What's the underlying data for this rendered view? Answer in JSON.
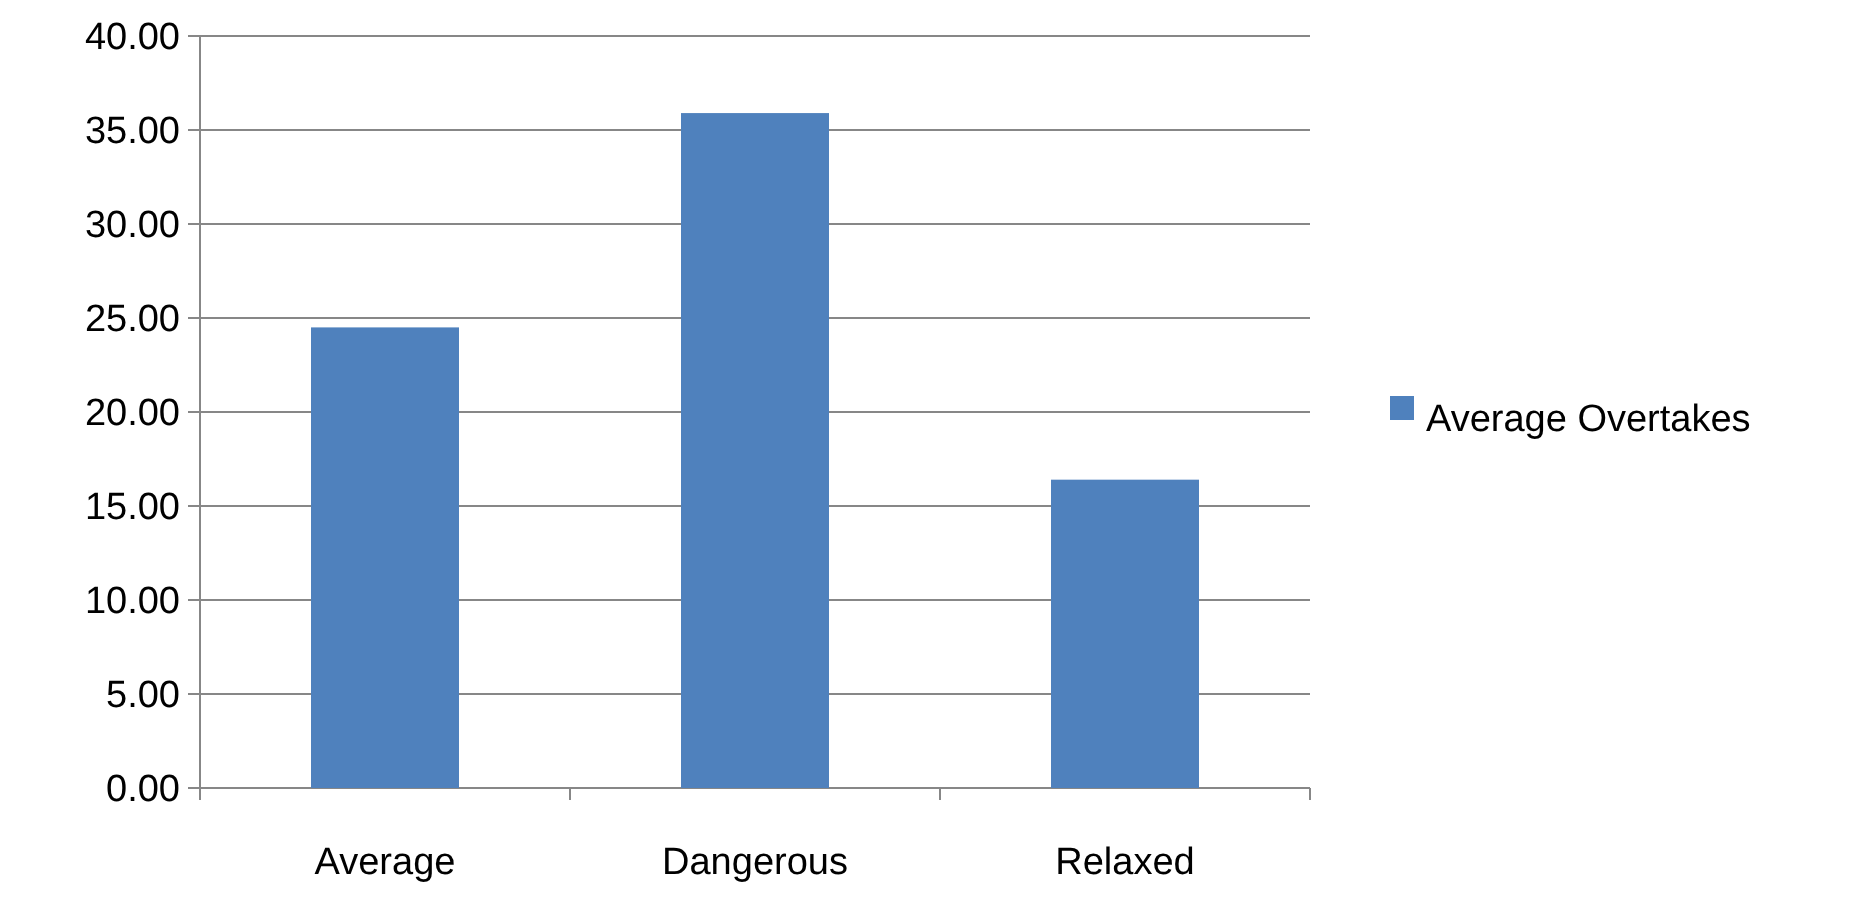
{
  "chart_data": {
    "type": "bar",
    "categories": [
      "Average",
      "Dangerous",
      "Relaxed"
    ],
    "series": [
      {
        "name": "Average Overtakes",
        "color": "#4f81bd",
        "values": [
          24.5,
          35.9,
          16.4
        ]
      }
    ],
    "ylim": [
      0,
      40
    ],
    "yticks": [
      {
        "value": 0,
        "label": "0.00"
      },
      {
        "value": 5,
        "label": "5.00"
      },
      {
        "value": 10,
        "label": "10.00"
      },
      {
        "value": 15,
        "label": "15.00"
      },
      {
        "value": 20,
        "label": "20.00"
      },
      {
        "value": 25,
        "label": "25.00"
      },
      {
        "value": 30,
        "label": "30.00"
      },
      {
        "value": 35,
        "label": "35.00"
      },
      {
        "value": 40,
        "label": "40.00"
      }
    ],
    "grid": "y",
    "legend": "right"
  }
}
